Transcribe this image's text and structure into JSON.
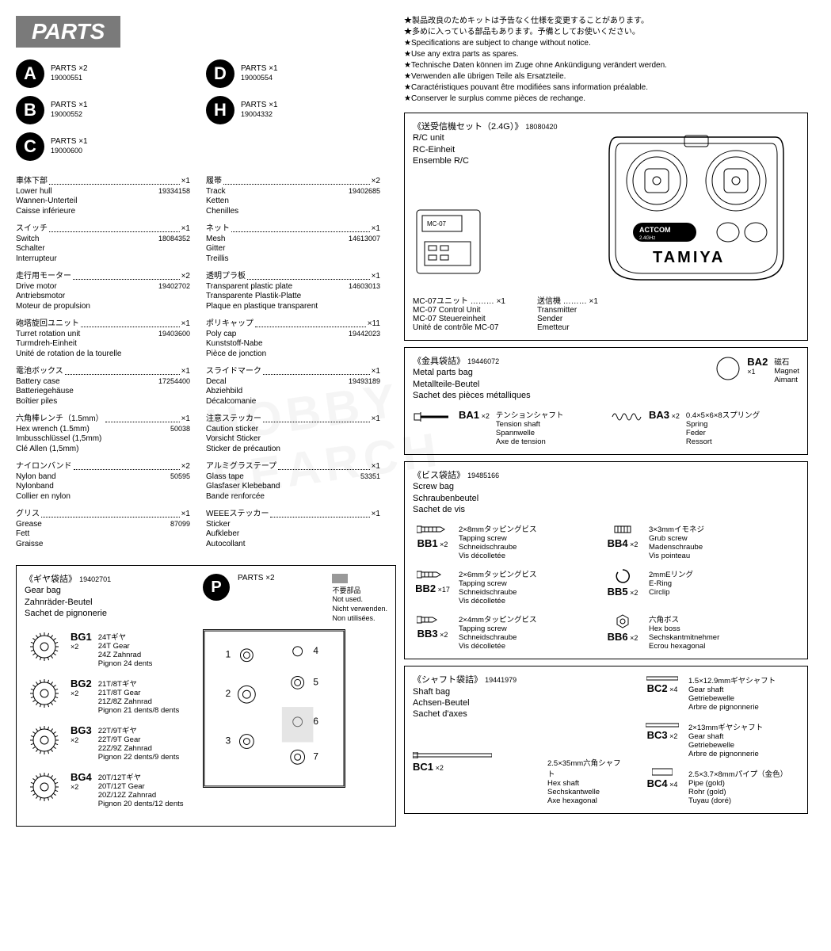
{
  "header": "PARTS",
  "watermark": "HOBBY SEARCH",
  "letters": [
    {
      "l": "A",
      "label": "PARTS ×2",
      "num": "19000551"
    },
    {
      "l": "D",
      "label": "PARTS ×1",
      "num": "19000554"
    },
    {
      "l": "B",
      "label": "PARTS ×1",
      "num": "19000552"
    },
    {
      "l": "H",
      "label": "PARTS ×1",
      "num": "19004332"
    },
    {
      "l": "C",
      "label": "PARTS ×1",
      "num": "19000600"
    }
  ],
  "partsLeft": [
    {
      "jp": "車体下部",
      "qty": "×1",
      "num": "19334158",
      "langs": [
        "Lower hull",
        "Wannen-Unterteil",
        "Caisse inférieure"
      ]
    },
    {
      "jp": "スイッチ",
      "qty": "×1",
      "num": "18084352",
      "langs": [
        "Switch",
        "Schalter",
        "Interrupteur"
      ]
    },
    {
      "jp": "走行用モーター",
      "qty": "×2",
      "num": "19402702",
      "langs": [
        "Drive motor",
        "Antriebsmotor",
        "Moteur de propulsion"
      ]
    },
    {
      "jp": "砲塔旋回ユニット",
      "qty": "×1",
      "num": "19403600",
      "langs": [
        "Turret rotation unit",
        "Turmdreh-Einheit",
        "Unité de rotation de la tourelle"
      ]
    },
    {
      "jp": "電池ボックス",
      "qty": "×1",
      "num": "17254400",
      "langs": [
        "Battery case",
        "Batteriegehäuse",
        "Boîtier piles"
      ]
    },
    {
      "jp": "六角棒レンチ（1.5mm）",
      "qty": "×1",
      "num": "50038",
      "langs": [
        "Hex wrench (1.5mm)",
        "Imbusschlüssel (1,5mm)",
        "Clé Allen (1,5mm)"
      ]
    },
    {
      "jp": "ナイロンバンド",
      "qty": "×2",
      "num": "50595",
      "langs": [
        "Nylon band",
        "Nylonband",
        "Collier en nylon"
      ]
    },
    {
      "jp": "グリス",
      "qty": "×1",
      "num": "87099",
      "langs": [
        "Grease",
        "Fett",
        "Graisse"
      ]
    }
  ],
  "partsRight": [
    {
      "jp": "履帯",
      "qty": "×2",
      "num": "19402685",
      "langs": [
        "Track",
        "Ketten",
        "Chenilles"
      ]
    },
    {
      "jp": "ネット",
      "qty": "×1",
      "num": "14613007",
      "langs": [
        "Mesh",
        "Gitter",
        "Treillis"
      ]
    },
    {
      "jp": "透明プラ板",
      "qty": "×1",
      "num": "14603013",
      "langs": [
        "Transparent plastic plate",
        "Transparente Plastik-Platte",
        "Plaque en plastique transparent"
      ]
    },
    {
      "jp": "ポリキャップ",
      "qty": "×11",
      "num": "19442023",
      "langs": [
        "Poly cap",
        "Kunststoff-Nabe",
        "Pièce de jonction"
      ]
    },
    {
      "jp": "スライドマーク",
      "qty": "×1",
      "num": "19493189",
      "langs": [
        "Decal",
        "Abziehbild",
        "Décalcomanie"
      ]
    },
    {
      "jp": "注意ステッカー",
      "qty": "×1",
      "num": "",
      "langs": [
        "Caution sticker",
        "Vorsicht Sticker",
        "Sticker de précaution"
      ]
    },
    {
      "jp": "アルミグラステープ",
      "qty": "×1",
      "num": "53351",
      "langs": [
        "Glass tape",
        "Glasfaser Klebeband",
        "Bande renforcée"
      ]
    },
    {
      "jp": "WEEEステッカー",
      "qty": "×1",
      "num": "",
      "langs": [
        "Sticker",
        "Aufkleber",
        "Autocollant"
      ]
    }
  ],
  "gearBag": {
    "title_jp": "《ギヤ袋詰》",
    "num": "19402701",
    "langs": [
      "Gear bag",
      "Zahnräder-Beutel",
      "Sachet de pignonerie"
    ],
    "pLabel": "PARTS ×2",
    "notused": [
      "不要部品",
      "Not used.",
      "Nicht verwenden.",
      "Non utilisées."
    ],
    "gears": [
      {
        "id": "BG1",
        "qty": "×2",
        "langs": [
          "24Tギヤ",
          "24T Gear",
          "24Z Zahnrad",
          "Pignon 24 dents"
        ]
      },
      {
        "id": "BG2",
        "qty": "×2",
        "langs": [
          "21T/8Tギヤ",
          "21T/8T Gear",
          "21Z/8Z Zahnrad",
          "Pignon 21 dents/8 dents"
        ]
      },
      {
        "id": "BG3",
        "qty": "×2",
        "langs": [
          "22T/9Tギヤ",
          "22T/9T Gear",
          "22Z/9Z Zahnrad",
          "Pignon 22 dents/9 dents"
        ]
      },
      {
        "id": "BG4",
        "qty": "×2",
        "langs": [
          "20T/12Tギヤ",
          "20T/12T Gear",
          "20Z/12Z Zahnrad",
          "Pignon 20 dents/12 dents"
        ]
      }
    ]
  },
  "notes": [
    "★製品改良のためキットは予告なく仕様を変更することがあります。",
    "★多めに入っている部品もあります。予備としてお使いください。",
    "★Specifications are subject to change without notice.",
    "★Use any extra parts as spares.",
    "★Technische Daten können im Zuge ohne Ankündigung verändert werden.",
    "★Verwenden alle übrigen Teile als Ersatzteile.",
    "★Caractéristiques pouvant être modifiées sans information préalable.",
    "★Conserver le surplus comme pièces de rechange."
  ],
  "rc": {
    "title_jp": "《送受信機セット（2.4G）》",
    "num": "18080420",
    "langs": [
      "R/C unit",
      "RC-Einheit",
      "Ensemble R/C"
    ],
    "brand": "TAMIYA",
    "logo": "ACTCOM",
    "freq": "2.4GHz",
    "unit": "MC-07",
    "mc07": {
      "jp": "MC-07ユニット",
      "qty": "×1",
      "langs": [
        "MC-07 Control Unit",
        "MC-07 Steuereinheit",
        "Unité de contrôle MC-07"
      ]
    },
    "tx": {
      "jp": "送信機",
      "qty": "×1",
      "langs": [
        "Transmitter",
        "Sender",
        "Emetteur"
      ]
    }
  },
  "metalBag": {
    "title_jp": "《金具袋詰》",
    "num": "19446072",
    "langs": [
      "Metal parts bag",
      "Metallteile-Beutel",
      "Sachet des pièces métalliques"
    ],
    "items": [
      {
        "id": "BA1",
        "qty": "×2",
        "langs": [
          "テンションシャフト",
          "Tension shaft",
          "Spannwelle",
          "Axe de tension"
        ]
      },
      {
        "id": "BA2",
        "qty": "×1",
        "langs": [
          "磁石",
          "Magnet",
          "Aimant"
        ]
      },
      {
        "id": "BA3",
        "qty": "×2",
        "langs": [
          "0.4×5×6×8スプリング",
          "Spring",
          "Feder",
          "Ressort"
        ]
      }
    ]
  },
  "screwBag": {
    "title_jp": "《ビス袋詰》",
    "num": "19485166",
    "langs": [
      "Screw bag",
      "Schraubenbeutel",
      "Sachet de vis"
    ],
    "items": [
      {
        "id": "BB1",
        "qty": "×2",
        "langs": [
          "2×8mmタッピングビス",
          "Tapping screw",
          "Schneidschraube",
          "Vis décolletée"
        ]
      },
      {
        "id": "BB4",
        "qty": "×2",
        "langs": [
          "3×3mmイモネジ",
          "Grub screw",
          "Madenschraube",
          "Vis pointeau"
        ]
      },
      {
        "id": "BB2",
        "qty": "×17",
        "langs": [
          "2×6mmタッピングビス",
          "Tapping screw",
          "Schneidschraube",
          "Vis décolletée"
        ]
      },
      {
        "id": "BB5",
        "qty": "×2",
        "langs": [
          "2mmEリング",
          "E-Ring",
          "Circlip"
        ]
      },
      {
        "id": "BB3",
        "qty": "×2",
        "langs": [
          "2×4mmタッピングビス",
          "Tapping screw",
          "Schneidschraube",
          "Vis décolletée"
        ]
      },
      {
        "id": "BB6",
        "qty": "×2",
        "langs": [
          "六角ボス",
          "Hex boss",
          "Sechskantmitnehmer",
          "Ecrou hexagonal"
        ]
      }
    ]
  },
  "shaftBag": {
    "title_jp": "《シャフト袋詰》",
    "num": "19441979",
    "langs": [
      "Shaft bag",
      "Achsen-Beutel",
      "Sachet d'axes"
    ],
    "items": [
      {
        "id": "BC1",
        "qty": "×2",
        "langs": [
          "2.5×35mm六角シャフト",
          "Hex shaft",
          "Sechskantwelle",
          "Axe hexagonal"
        ]
      },
      {
        "id": "BC2",
        "qty": "×4",
        "langs": [
          "1.5×12.9mmギヤシャフト",
          "Gear shaft",
          "Getriebewelle",
          "Arbre de pignonnerie"
        ]
      },
      {
        "id": "BC3",
        "qty": "×2",
        "langs": [
          "2×13mmギヤシャフト",
          "Gear shaft",
          "Getriebewelle",
          "Arbre de pignonnerie"
        ]
      },
      {
        "id": "BC4",
        "qty": "×4",
        "langs": [
          "2.5×3.7×8mmパイプ（金色）",
          "Pipe (gold)",
          "Rohr (gold)",
          "Tuyau (doré)"
        ]
      }
    ]
  }
}
